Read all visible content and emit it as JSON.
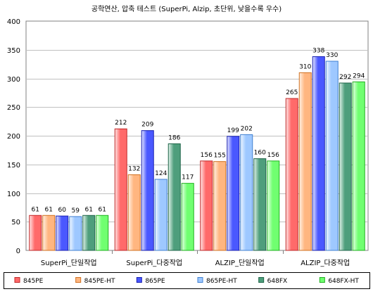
{
  "chart_data": {
    "type": "bar",
    "title": "공학연산, 압축 테스트 (SuperPi, Alzip, 초단위, 낮을수록 우수)",
    "categories": [
      "SuperPi_단일작업",
      "SuperPi_다중작업",
      "ALZIP_단일작업",
      "ALZIP_다중작업"
    ],
    "series": [
      {
        "name": "845PE",
        "values": [
          61,
          212,
          156,
          265
        ]
      },
      {
        "name": "845PE-HT",
        "values": [
          61,
          132,
          155,
          310
        ]
      },
      {
        "name": "865PE",
        "values": [
          60,
          209,
          199,
          338
        ]
      },
      {
        "name": "865PE-HT",
        "values": [
          59,
          124,
          202,
          330
        ]
      },
      {
        "name": "648FX",
        "values": [
          61,
          186,
          160,
          292
        ]
      },
      {
        "name": "648FX-HT",
        "values": [
          61,
          117,
          156,
          294
        ]
      }
    ],
    "ylim": [
      0,
      400
    ],
    "yticks": [
      0,
      50,
      100,
      150,
      200,
      250,
      300,
      350,
      400
    ],
    "grid": true,
    "legend_position": "bottom",
    "data_labels": true,
    "colors": {
      "plot_background": "#ffffff",
      "frame": "#808080",
      "grid": "#c0c0c0"
    },
    "series_colors": [
      {
        "fill": "#ff6a6a",
        "light": "#ffe8e8",
        "dark": "#c02828"
      },
      {
        "fill": "#ffb680",
        "light": "#fff2e6",
        "dark": "#d07020"
      },
      {
        "fill": "#4a58ff",
        "light": "#e6e8ff",
        "dark": "#1820b0"
      },
      {
        "fill": "#9ec8ff",
        "light": "#f0f7ff",
        "dark": "#4080d0"
      },
      {
        "fill": "#4e9e7c",
        "light": "#e4f4ec",
        "dark": "#1e6448"
      },
      {
        "fill": "#70ff70",
        "light": "#e6ffe6",
        "dark": "#20b020"
      }
    ]
  }
}
